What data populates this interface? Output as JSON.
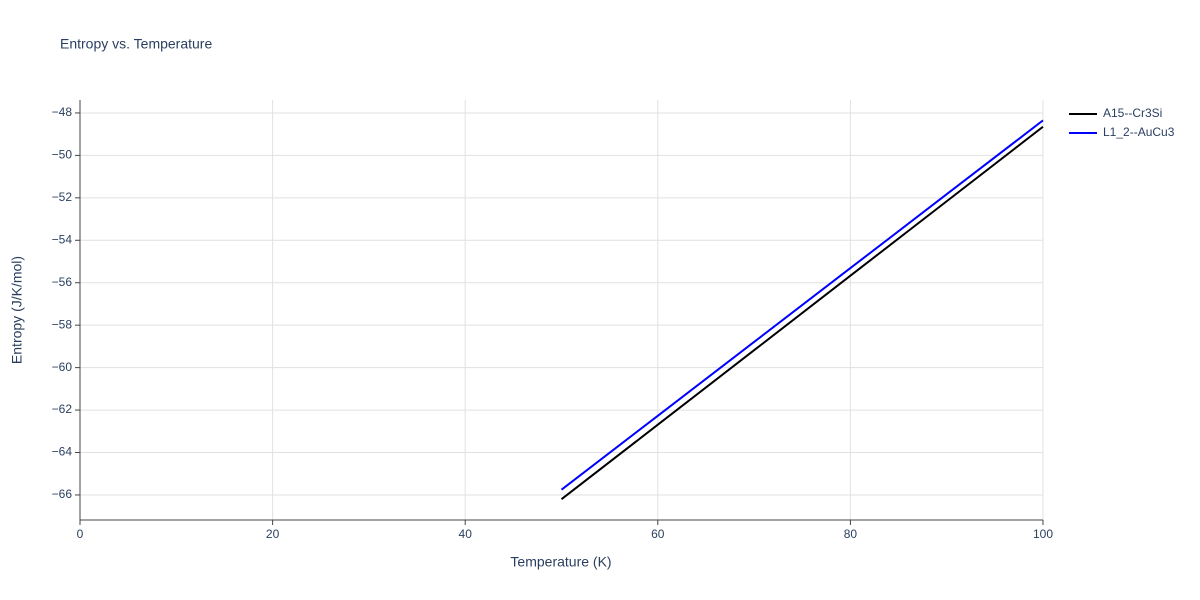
{
  "chart_data": {
    "type": "line",
    "title": "Entropy vs. Temperature",
    "x_label": "Temperature (K)",
    "y_label": "Entropy (J/K/mol)",
    "x": [
      50,
      60,
      70,
      80,
      90,
      100
    ],
    "series": [
      {
        "name": "A15--Cr3Si",
        "color": "#000000",
        "values": [
          -66.2,
          -62.69,
          -59.18,
          -55.67,
          -52.16,
          -48.65
        ]
      },
      {
        "name": "L1_2--AuCu3",
        "color": "#0000ff",
        "values": [
          -65.75,
          -62.27,
          -58.79,
          -55.31,
          -51.83,
          -48.35
        ]
      }
    ],
    "xlim": [
      0,
      100
    ],
    "xticks": [
      0,
      20,
      40,
      60,
      80,
      100
    ],
    "ylim": [
      -67.18,
      -47.39
    ],
    "yticks": [
      {
        "value": -66,
        "label": "−66"
      },
      {
        "value": -64,
        "label": "−64"
      },
      {
        "value": -62,
        "label": "−62"
      },
      {
        "value": -60,
        "label": "−60"
      },
      {
        "value": -58,
        "label": "−58"
      },
      {
        "value": -56,
        "label": "−56"
      },
      {
        "value": -54,
        "label": "−54"
      },
      {
        "value": -52,
        "label": "−52"
      },
      {
        "value": -50,
        "label": "−50"
      },
      {
        "value": -48,
        "label": "−48"
      }
    ],
    "grid": true,
    "legend": "right"
  }
}
